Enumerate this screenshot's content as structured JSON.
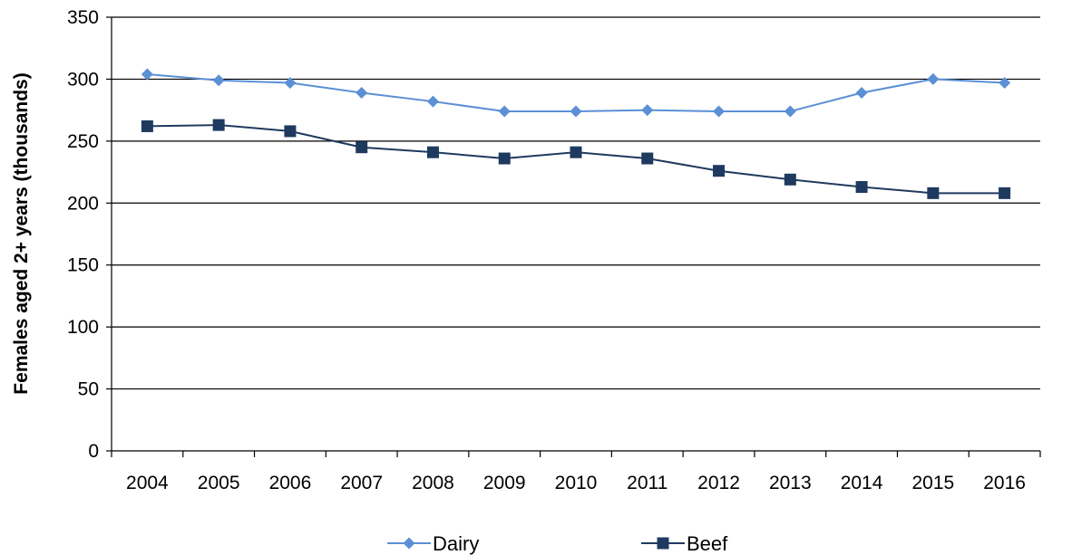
{
  "chart_data": {
    "type": "line",
    "title": "",
    "xlabel": "",
    "ylabel": "Females aged 2+ years (thousands)",
    "categories": [
      "2004",
      "2005",
      "2006",
      "2007",
      "2008",
      "2009",
      "2010",
      "2011",
      "2012",
      "2013",
      "2014",
      "2015",
      "2016"
    ],
    "ylim": [
      0,
      350
    ],
    "yticks": [
      0,
      50,
      100,
      150,
      200,
      250,
      300,
      350
    ],
    "grid": "horizontal",
    "legend_position": "bottom",
    "series": [
      {
        "name": "Dairy",
        "color": "#5b8fd6",
        "marker": "diamond",
        "values": [
          304,
          299,
          297,
          289,
          282,
          274,
          274,
          275,
          274,
          274,
          289,
          300,
          297
        ]
      },
      {
        "name": "Beef",
        "color": "#1f3a5f",
        "marker": "square",
        "values": [
          262,
          263,
          258,
          245,
          241,
          236,
          241,
          236,
          226,
          219,
          213,
          208,
          208
        ]
      }
    ]
  }
}
